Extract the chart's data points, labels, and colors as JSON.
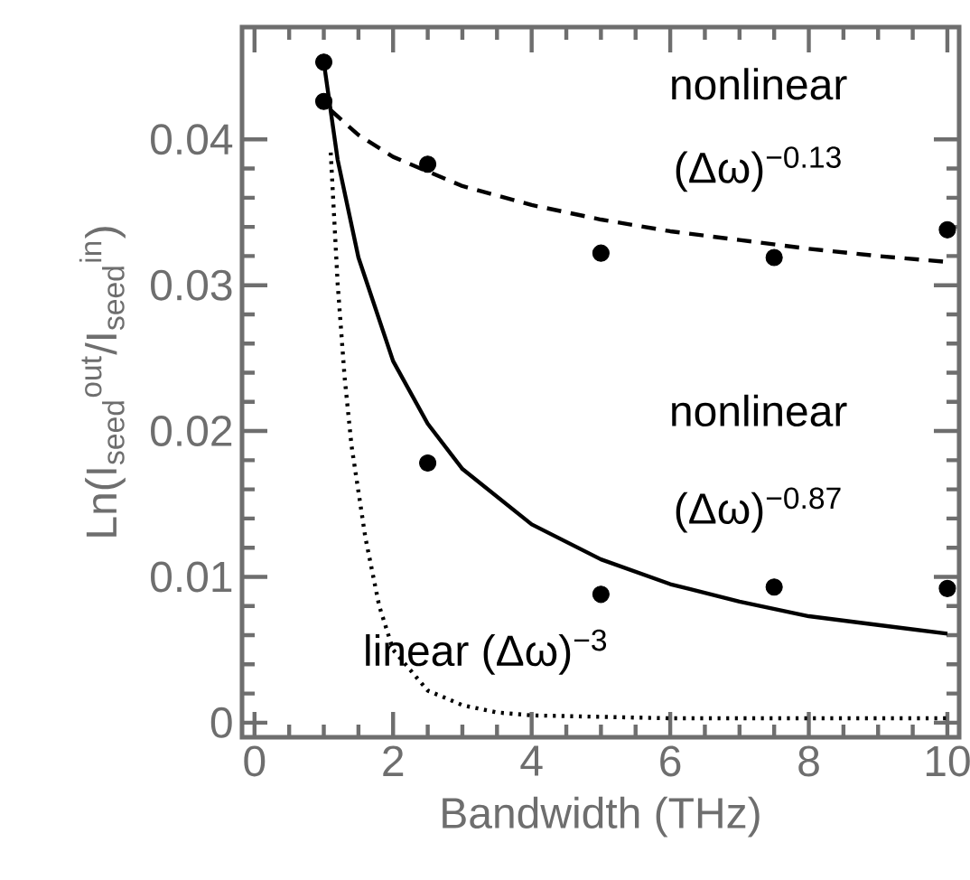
{
  "chart_data": {
    "type": "scatter",
    "xlabel": "Bandwidth (THz)",
    "ylabel": "Ln(I$_{seed}$$^{out}$/I$_{seed}$$^{in}$)",
    "xlim": [
      -0.18,
      10.17
    ],
    "ylim": [
      -0.001,
      0.0477
    ],
    "xticks": [
      0,
      2,
      4,
      6,
      8,
      10
    ],
    "yticks": [
      0,
      0.01,
      0.02,
      0.03,
      0.04
    ],
    "grid": false,
    "legend": false,
    "series": [
      {
        "color": "#000000",
        "marker": "circle",
        "x": [
          1,
          2.5,
          5,
          7.5,
          10
        ],
        "values": [
          0.0426,
          0.0383,
          0.0322,
          0.0319,
          0.0338
        ]
      },
      {
        "color": "#000000",
        "marker": "circle",
        "x": [
          1,
          2.5,
          5,
          7.5,
          10
        ],
        "values": [
          0.0453,
          0.0178,
          0.0088,
          0.0093,
          0.0092
        ]
      },
      {
        "type": "line",
        "color": "#000000",
        "line_style": "dashed",
        "marker": "none",
        "x": [
          1.1,
          1.5,
          2,
          3,
          4,
          5,
          6,
          7,
          8,
          9,
          10
        ],
        "values": [
          0.042,
          0.0403,
          0.0388,
          0.0368,
          0.0355,
          0.0345,
          0.0337,
          0.0331,
          0.0325,
          0.032,
          0.0316
        ]
      },
      {
        "type": "line",
        "color": "#000000",
        "line_style": "solid",
        "marker": "none",
        "x": [
          1,
          1.2,
          1.5,
          2,
          2.5,
          3,
          4,
          5,
          6,
          7,
          8,
          9,
          10
        ],
        "values": [
          0.0453,
          0.0386,
          0.0319,
          0.0248,
          0.0205,
          0.0174,
          0.0136,
          0.0112,
          0.0095,
          0.0083,
          0.0073,
          0.0067,
          0.0061
        ]
      },
      {
        "type": "line",
        "color": "#000000",
        "line_style": "dotted",
        "marker": "none",
        "x": [
          1.1,
          1.2,
          1.3,
          1.4,
          1.6,
          1.8,
          2,
          2.5,
          3,
          3.5,
          4,
          5,
          6,
          8,
          10
        ],
        "values": [
          0.0391,
          0.0301,
          0.0237,
          0.019,
          0.0127,
          0.008,
          0.005,
          0.0022,
          0.0012,
          0.0007,
          0.0005,
          0.0004,
          0.0003,
          0.0003,
          0.0003
        ]
      }
    ],
    "annotations": [
      "nonlinear",
      "(Δω)$^{−0.13}$",
      "nonlinear",
      "(Δω)$^{−0.87}$",
      "linear (Δω)$^{−3}$"
    ]
  }
}
